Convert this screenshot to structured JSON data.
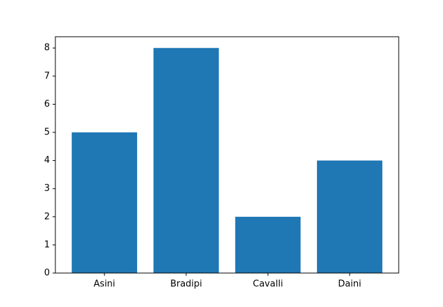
{
  "chart_data": {
    "type": "bar",
    "categories": [
      "Asini",
      "Bradipi",
      "Cavalli",
      "Daini"
    ],
    "values": [
      5,
      8,
      2,
      4
    ],
    "color": "#1f77b4",
    "ylim": [
      0,
      8.4
    ],
    "yticks": [
      0,
      1,
      2,
      3,
      4,
      5,
      6,
      7,
      8
    ],
    "grid": false
  }
}
